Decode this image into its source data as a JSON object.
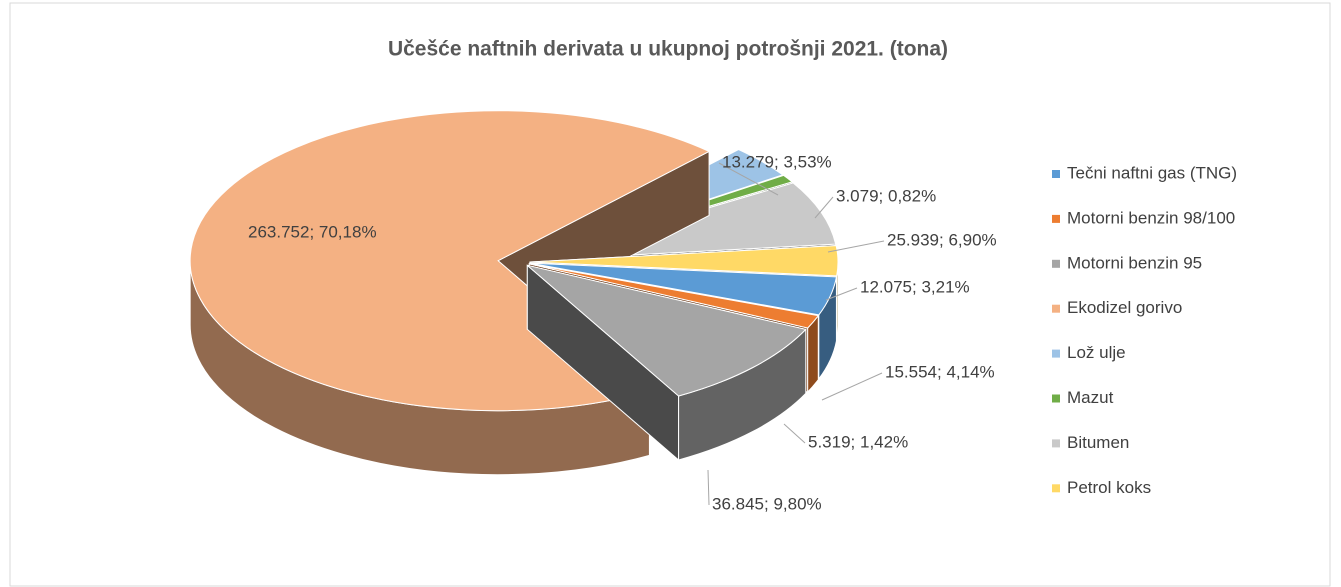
{
  "chart_data": {
    "type": "pie3d",
    "title": "Učešće naftnih derivata u ukupnoj potrošnji 2021. (tona)",
    "categories": [
      "Tečni naftni gas (TNG)",
      "Motorni benzin 98/100",
      "Motorni benzin 95",
      "Ekodizel gorivo",
      "Lož ulje",
      "Mazut",
      "Bitumen",
      "Petrol koks"
    ],
    "values": [
      15554,
      5319,
      36845,
      263752,
      13279,
      3079,
      25939,
      12075
    ],
    "value_labels": [
      "15.554; 4,14%",
      "5.319; 1,42%",
      "36.845; 9,80%",
      "263.752; 70,18%",
      "13.279; 3,53%",
      "3.079; 0,82%",
      "25.939; 6,90%",
      "12.075; 3,21%"
    ],
    "colors": [
      "#5b9bd5",
      "#ed7d31",
      "#a5a5a5",
      "#f4b183",
      "#9dc3e6",
      "#70ad47",
      "#c9c9c9",
      "#ffd966"
    ],
    "legend": "right"
  }
}
